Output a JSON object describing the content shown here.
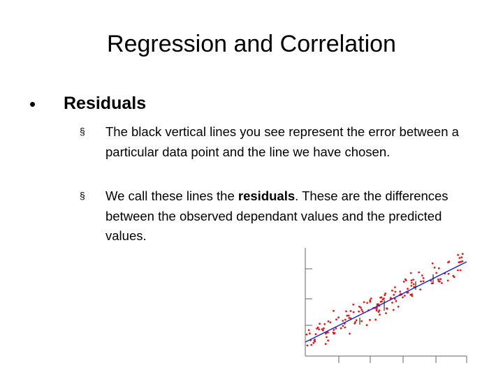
{
  "header": {
    "title": "Regression and Correlation"
  },
  "bullets": [
    {
      "text": "Residuals",
      "sub": [
        {
          "parts": [
            "The black vertical lines you see represent the error between a particular data point and the line we have chosen."
          ]
        },
        {
          "parts": [
            "We call these lines the ",
            "residuals",
            ". These are the differences between the observed dependant values and the predicted values."
          ]
        }
      ]
    }
  ]
}
